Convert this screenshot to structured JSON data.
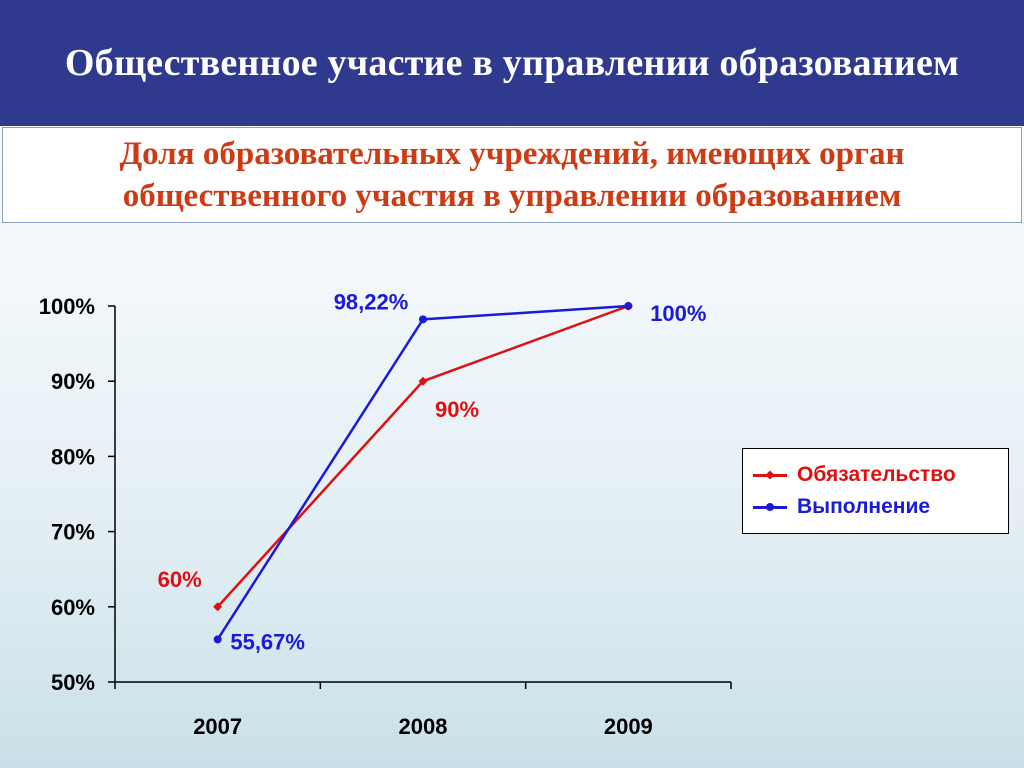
{
  "header": {
    "title": "Общественное участие в управлении образованием"
  },
  "subtitle": {
    "line1": "Доля образовательных учреждений, имеющих орган",
    "line2": "общественного участия в управлении образованием"
  },
  "colors": {
    "header_bg": "#2f3a8f",
    "subtitle_text": "#cc3b14",
    "red_series": "#e01010",
    "blue_series": "#1a1ad8"
  },
  "chart_data": {
    "type": "line",
    "categories": [
      "2007",
      "2008",
      "2009"
    ],
    "ylim": [
      0.5,
      1.0
    ],
    "yticks": [
      "50%",
      "60%",
      "70%",
      "80%",
      "90%",
      "100%"
    ],
    "grid": false,
    "legend_position": "right",
    "series": [
      {
        "name": "Обязательство",
        "color": "#e01010",
        "marker": "diamond",
        "values": [
          0.6,
          0.9,
          1.0
        ],
        "labels": [
          "60%",
          "90%",
          ""
        ]
      },
      {
        "name": "Выполнение",
        "color": "#1a1ad8",
        "marker": "circle",
        "values": [
          0.5567,
          0.9822,
          1.0
        ],
        "labels": [
          "55,67%",
          "98,22%",
          "100%"
        ]
      }
    ]
  }
}
